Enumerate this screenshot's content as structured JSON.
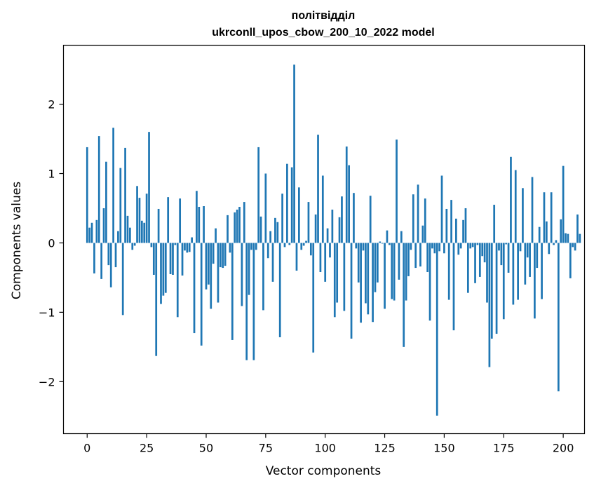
{
  "chart_data": {
    "type": "bar",
    "title_lines": [
      "політвідділ",
      "ukrconll_upos_cbow_200_10_2022 model"
    ],
    "xlabel": "Vector components",
    "ylabel": "Components values",
    "xlim": [
      -9.95,
      208.95
    ],
    "ylim": [
      -2.75,
      2.85
    ],
    "x_ticks": [
      0,
      25,
      50,
      75,
      100,
      125,
      150,
      175,
      200
    ],
    "y_ticks": [
      -2,
      -1,
      0,
      1,
      2
    ],
    "x_tick_labels": [
      "0",
      "25",
      "50",
      "75",
      "100",
      "125",
      "150",
      "175",
      "200"
    ],
    "y_tick_labels": [
      "−2",
      "−1",
      "0",
      "1",
      "2"
    ],
    "bar_color": "#1f77b4",
    "values": [
      1.38,
      0.22,
      0.29,
      -0.44,
      0.33,
      1.54,
      -0.52,
      0.5,
      1.17,
      -0.32,
      -0.64,
      1.66,
      -0.35,
      0.17,
      1.08,
      -1.04,
      1.37,
      0.39,
      0.22,
      -0.1,
      -0.04,
      0.82,
      0.65,
      0.32,
      0.29,
      0.71,
      1.6,
      -0.06,
      -0.46,
      -1.63,
      0.49,
      -0.88,
      -0.76,
      -0.72,
      0.66,
      -0.45,
      -0.46,
      -0.03,
      -1.07,
      0.64,
      -0.47,
      -0.11,
      -0.14,
      -0.13,
      0.08,
      -1.3,
      0.75,
      0.52,
      -1.48,
      0.53,
      -0.67,
      -0.6,
      -0.95,
      -0.3,
      0.21,
      -0.86,
      -0.35,
      -0.36,
      -0.33,
      0.4,
      -0.14,
      -1.4,
      0.44,
      0.48,
      0.52,
      -0.91,
      0.59,
      -1.69,
      -0.75,
      -0.1,
      -1.69,
      -0.1,
      1.38,
      0.38,
      -0.97,
      1.0,
      -0.22,
      0.17,
      -0.56,
      0.36,
      0.3,
      -1.36,
      0.71,
      -0.06,
      1.14,
      -0.03,
      1.09,
      2.57,
      -0.4,
      0.8,
      -0.1,
      -0.04,
      0.03,
      0.59,
      -0.18,
      -1.58,
      0.41,
      1.56,
      -0.42,
      0.97,
      -0.56,
      0.21,
      -0.21,
      0.48,
      -1.07,
      -0.86,
      0.37,
      0.67,
      -0.98,
      1.39,
      1.12,
      -1.38,
      0.72,
      -0.08,
      -0.57,
      -1.15,
      -0.11,
      -0.87,
      -1.03,
      0.68,
      -1.14,
      -0.71,
      -0.57,
      0.02,
      -0.01,
      -0.95,
      0.18,
      -0.03,
      -0.81,
      -0.83,
      1.49,
      -0.53,
      0.17,
      -1.5,
      -0.83,
      -0.48,
      -0.1,
      0.7,
      -0.36,
      0.84,
      -0.34,
      0.25,
      0.64,
      -0.42,
      -1.12,
      -0.08,
      -0.15,
      -2.49,
      -0.12,
      0.97,
      -0.15,
      0.49,
      -0.82,
      0.62,
      -1.26,
      0.35,
      -0.17,
      -0.08,
      0.33,
      0.5,
      -0.72,
      -0.08,
      -0.06,
      -0.58,
      -0.03,
      -0.49,
      -0.19,
      -0.28,
      -0.86,
      -1.79,
      -1.38,
      0.55,
      -1.31,
      -0.11,
      -0.32,
      -1.1,
      -0.02,
      -0.43,
      1.24,
      -0.89,
      1.05,
      -0.82,
      -0.12,
      0.79,
      -0.6,
      -0.21,
      -0.49,
      0.95,
      -1.09,
      -0.36,
      0.23,
      -0.81,
      0.73,
      0.31,
      -0.16,
      0.73,
      -0.03,
      0.04,
      -2.14,
      0.34,
      1.11,
      0.14,
      0.13,
      -0.51,
      -0.06,
      -0.11,
      0.41,
      0.13
    ]
  }
}
